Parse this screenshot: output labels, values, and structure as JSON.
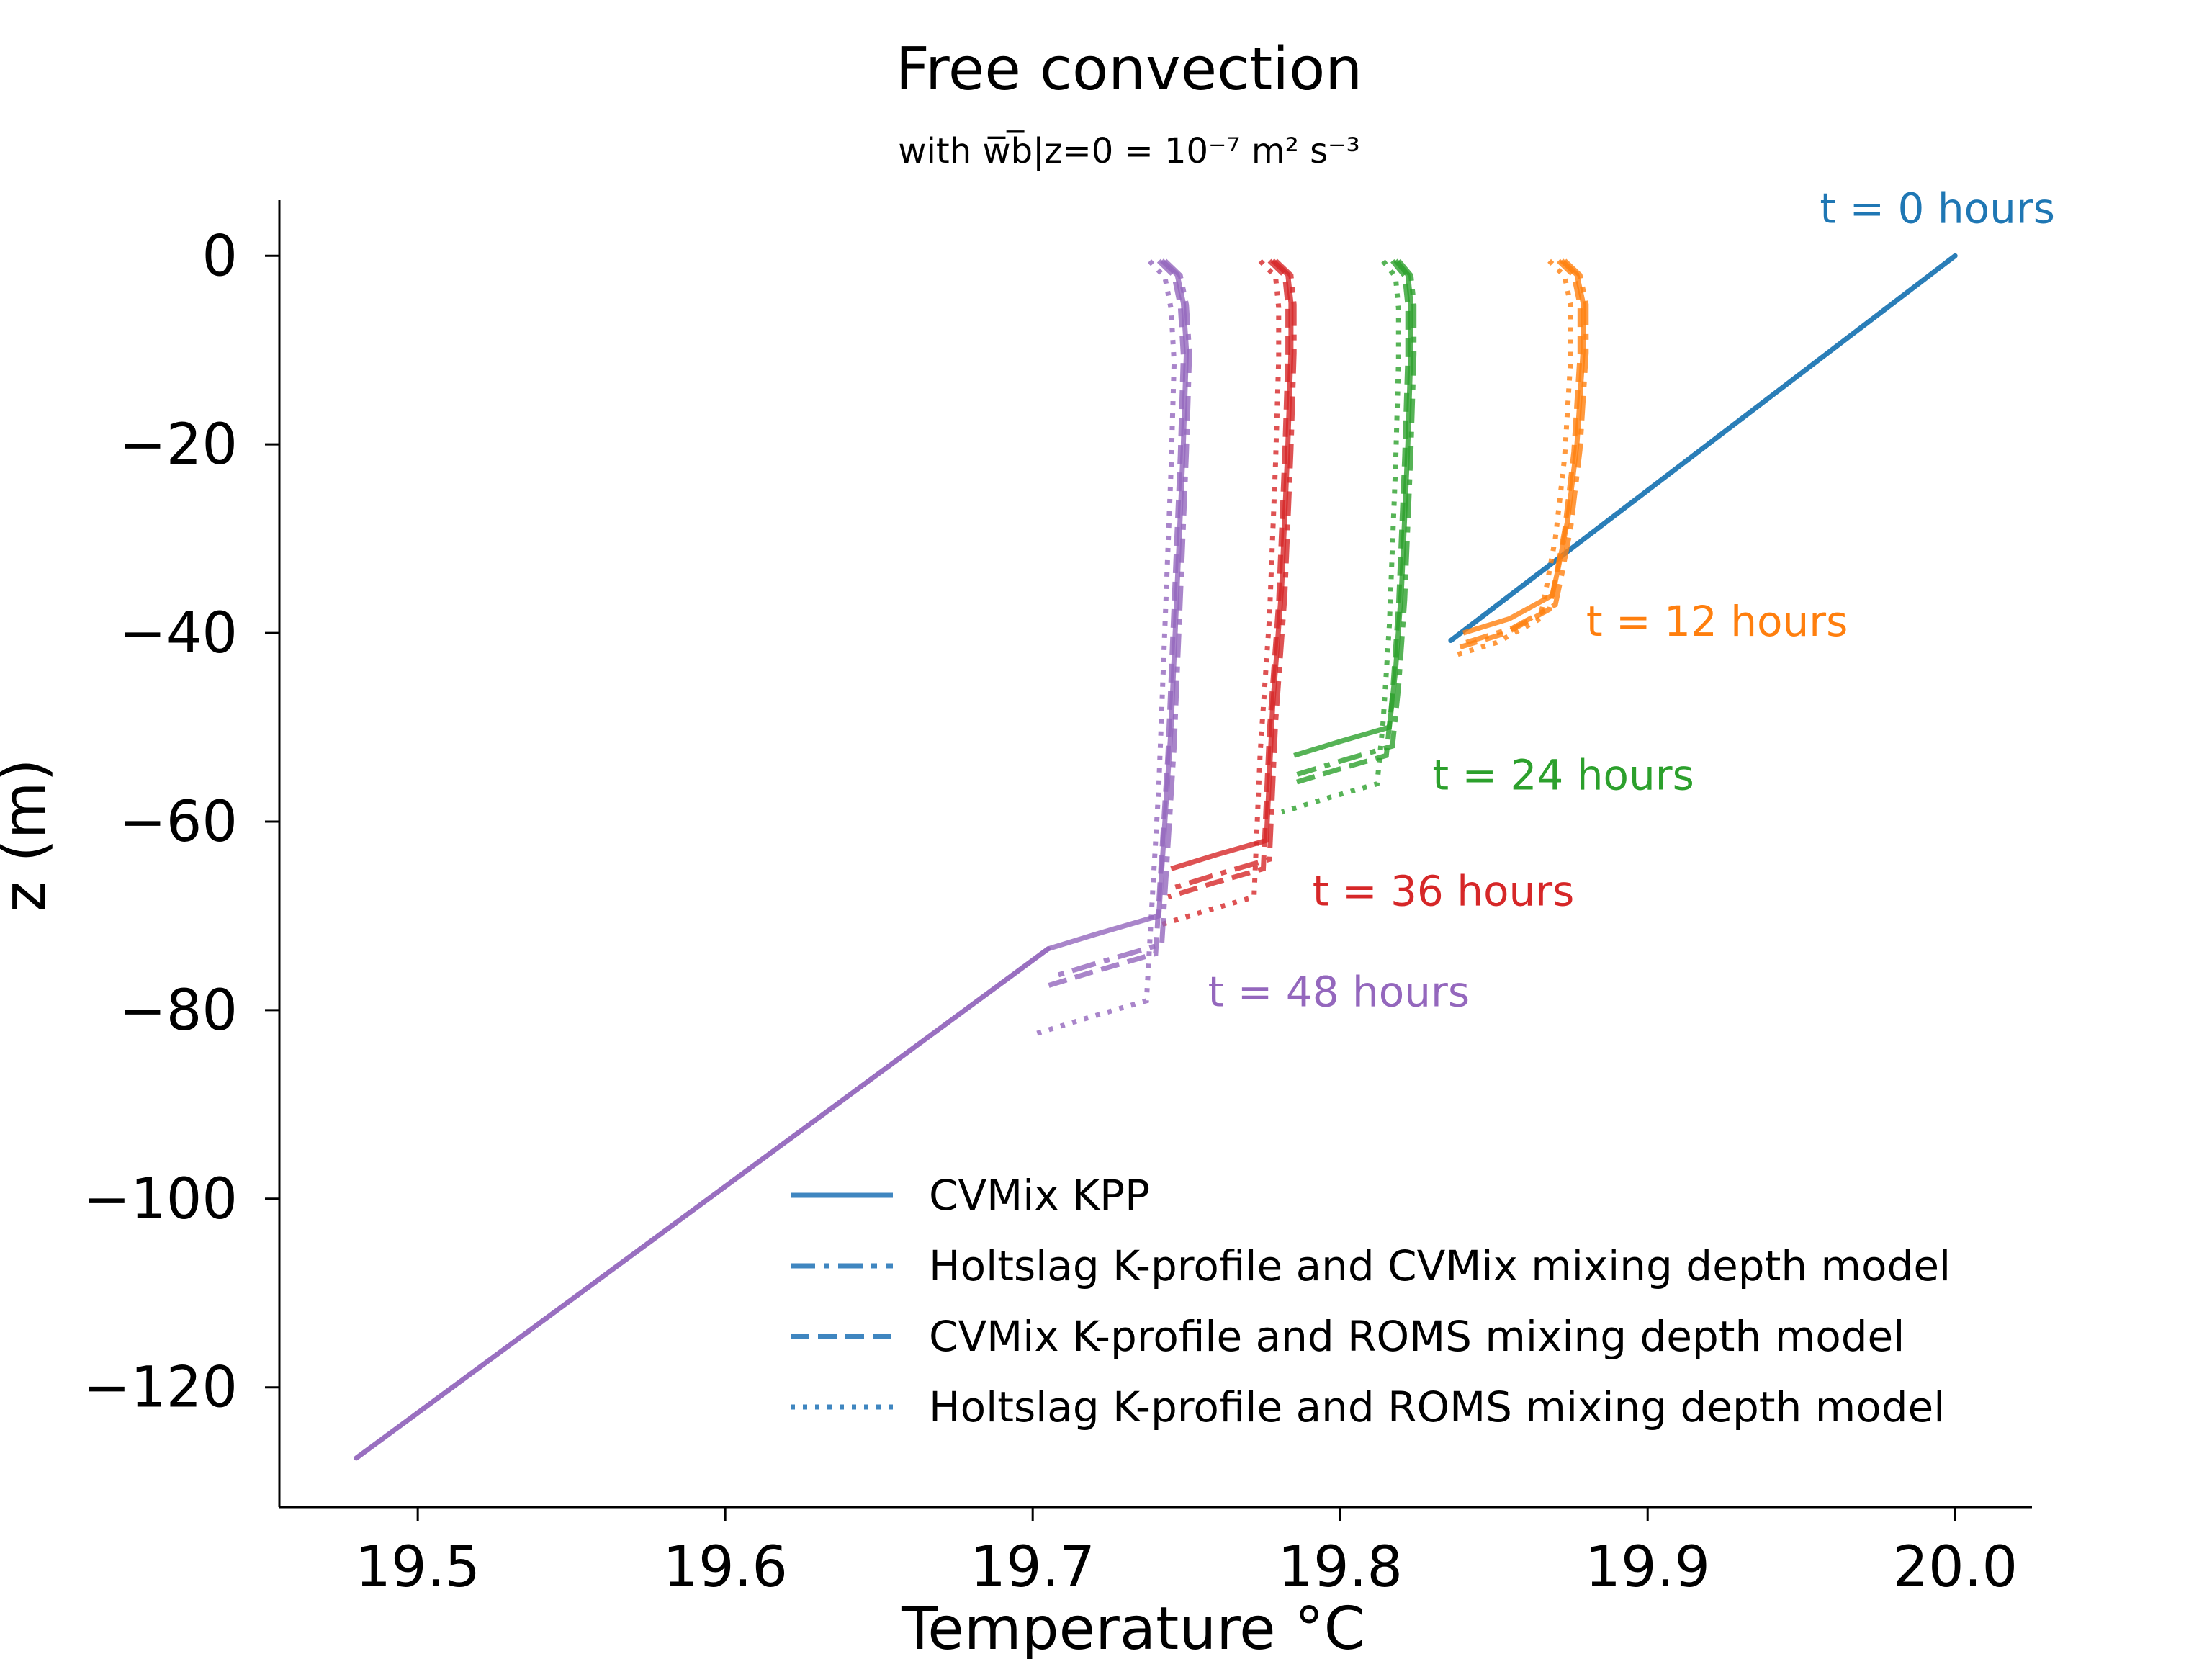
{
  "chart_data": {
    "type": "line",
    "title": "Free convection",
    "subtitle": "with w̅b̅|z=0 = 10⁻⁷ m² s⁻³",
    "xlabel": "Temperature  °C",
    "ylabel": "z (m)",
    "xlim": [
      19.455,
      20.025
    ],
    "ylim": [
      -132.7,
      5.9
    ],
    "xticks": [
      19.5,
      19.6,
      19.7,
      19.8,
      19.9,
      20.0
    ],
    "xtick_labels": [
      "19.5",
      "19.6",
      "19.7",
      "19.8",
      "19.9",
      "20.0"
    ],
    "yticks": [
      0,
      -20,
      -40,
      -60,
      -80,
      -100,
      -120
    ],
    "ytick_labels": [
      "0",
      "−20",
      "−40",
      "−60",
      "−80",
      "−100",
      "−120"
    ],
    "grid": false,
    "legend": {
      "placement": "lower-right",
      "entries": [
        {
          "label": "CVMix KPP",
          "style": "solid"
        },
        {
          "label": "Holtslag K-profile and CVMix mixing depth model",
          "style": "dashdot"
        },
        {
          "label": "CVMix K-profile and ROMS mixing depth model",
          "style": "dashed"
        },
        {
          "label": "Holtslag K-profile and ROMS mixing depth model",
          "style": "dotted"
        }
      ]
    },
    "time_labels": [
      {
        "text": "t = 0 hours",
        "color": "#1f77b4",
        "x": 19.956,
        "z": 3.5
      },
      {
        "text": "t = 12 hours",
        "color": "#ff7f0e",
        "x": 19.88,
        "z": -40.3
      },
      {
        "text": "t = 24 hours",
        "color": "#2ca02c",
        "x": 19.83,
        "z": -56.6
      },
      {
        "text": "t = 36 hours",
        "color": "#d62728",
        "x": 19.791,
        "z": -68.9
      },
      {
        "text": "t = 48 hours",
        "color": "#9467bd",
        "x": 19.757,
        "z": -79.6
      }
    ],
    "series": [
      {
        "time_hours": 0,
        "color": "#1f77b4",
        "points": [
          [
            20.0,
            0
          ],
          [
            19.836,
            -40.8
          ]
        ]
      },
      {
        "time_hours": 12,
        "color": "#ff7f0e",
        "mld": {
          "solid": -36,
          "dashdot": -37,
          "dashed": -37.5,
          "dotted": -38.5
        },
        "points": [
          [
            19.872,
            -0.5
          ],
          [
            19.877,
            -2
          ],
          [
            19.879,
            -5
          ],
          [
            19.879,
            -10
          ],
          [
            19.877,
            -20
          ],
          [
            19.874,
            -28
          ],
          [
            19.871,
            -33
          ],
          [
            19.869,
            -36
          ],
          [
            19.855,
            -38.5
          ],
          [
            19.84,
            -40
          ]
        ]
      },
      {
        "time_hours": 24,
        "color": "#2ca02c",
        "mld": {
          "solid": -50,
          "dashdot": -52,
          "dashed": -53,
          "dotted": -56
        },
        "points": [
          [
            19.818,
            -0.5
          ],
          [
            19.822,
            -2
          ],
          [
            19.823,
            -5
          ],
          [
            19.823,
            -10
          ],
          [
            19.822,
            -20
          ],
          [
            19.82,
            -35
          ],
          [
            19.818,
            -44
          ],
          [
            19.816,
            -50
          ],
          [
            19.8,
            -51.5
          ],
          [
            19.785,
            -53
          ]
        ]
      },
      {
        "time_hours": 36,
        "color": "#d62728",
        "mld": {
          "solid": -62,
          "dashdot": -64,
          "dashed": -65,
          "dotted": -68
        },
        "points": [
          [
            19.778,
            -0.5
          ],
          [
            19.783,
            -2
          ],
          [
            19.784,
            -5
          ],
          [
            19.784,
            -10
          ],
          [
            19.783,
            -20
          ],
          [
            19.781,
            -35
          ],
          [
            19.778,
            -48
          ],
          [
            19.776,
            -62
          ],
          [
            19.76,
            -63.5
          ],
          [
            19.745,
            -65
          ]
        ]
      },
      {
        "time_hours": 48,
        "color": "#9467bd",
        "mld": {
          "solid": -71,
          "dashdot": -74,
          "dashed": -75,
          "dotted": -80
        },
        "points": [
          [
            19.742,
            -0.5
          ],
          [
            19.747,
            -2
          ],
          [
            19.749,
            -5
          ],
          [
            19.75,
            -10
          ],
          [
            19.749,
            -20
          ],
          [
            19.747,
            -35
          ],
          [
            19.745,
            -50
          ],
          [
            19.743,
            -60
          ],
          [
            19.741,
            -70
          ],
          [
            19.72,
            -72
          ],
          [
            19.705,
            -73.5
          ]
        ]
      },
      {
        "time_hours": 48,
        "color": "#9467bd",
        "role": "linear-profile",
        "points": [
          [
            19.705,
            -73.5
          ],
          [
            19.48,
            -127.5
          ]
        ]
      }
    ]
  }
}
